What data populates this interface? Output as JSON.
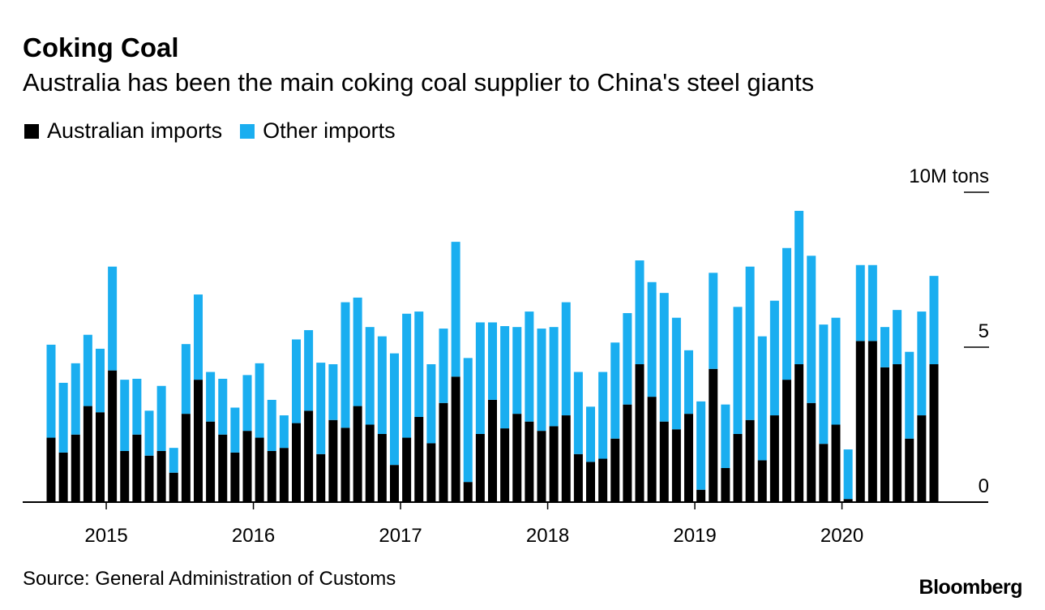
{
  "title": "Coking Coal",
  "subtitle": "Australia has been the main coking coal supplier to China's steel giants",
  "legend": [
    {
      "label": "Australian imports",
      "color": "#000000"
    },
    {
      "label": "Other imports",
      "color": "#1aaef0"
    }
  ],
  "source": "Source: General Administration of Customs",
  "brand": "Bloomberg",
  "chart_data": {
    "type": "bar",
    "stacked": true,
    "title": "Coking Coal",
    "subtitle": "Australia has been the main coking coal supplier to China's steel giants",
    "unit_label": "10M tons",
    "ylim": [
      0,
      10
    ],
    "yticks": [
      {
        "value": 0,
        "label": "0"
      },
      {
        "value": 5,
        "label": "5"
      },
      {
        "value": 10,
        "label": "10M tons"
      }
    ],
    "x_start": "2014-08",
    "xticks": [
      {
        "label": "2015",
        "index": 5
      },
      {
        "label": "2016",
        "index": 17
      },
      {
        "label": "2017",
        "index": 29
      },
      {
        "label": "2018",
        "index": 41
      },
      {
        "label": "2019",
        "index": 53
      },
      {
        "label": "2020",
        "index": 65
      }
    ],
    "series": [
      {
        "name": "Australian imports",
        "color": "#000000",
        "values": [
          2.08,
          1.6,
          2.18,
          3.1,
          2.9,
          4.25,
          1.65,
          2.18,
          1.5,
          1.65,
          0.95,
          2.85,
          3.95,
          2.6,
          2.18,
          1.6,
          2.3,
          2.08,
          1.65,
          1.75,
          2.55,
          2.95,
          1.55,
          2.65,
          2.4,
          3.1,
          2.5,
          2.2,
          1.2,
          2.08,
          2.75,
          1.9,
          3.2,
          4.05,
          0.65,
          2.2,
          3.3,
          2.38,
          2.85,
          2.6,
          2.3,
          2.45,
          2.8,
          1.55,
          1.3,
          1.4,
          2.05,
          3.15,
          4.45,
          3.4,
          2.6,
          2.35,
          2.85,
          0.4,
          4.3,
          1.1,
          2.2,
          2.65,
          1.35,
          2.8,
          3.95,
          4.45,
          3.2,
          1.88,
          2.5,
          0.1,
          5.2,
          5.2,
          4.35,
          4.45,
          2.05,
          2.8,
          4.45
        ]
      },
      {
        "name": "Other imports",
        "color": "#1aaef0",
        "values": [
          3.0,
          2.25,
          2.3,
          2.3,
          2.05,
          3.35,
          2.3,
          1.8,
          1.45,
          2.1,
          0.8,
          2.25,
          2.75,
          1.6,
          1.8,
          1.45,
          1.8,
          2.4,
          1.65,
          1.05,
          2.7,
          2.6,
          2.95,
          1.8,
          4.05,
          3.5,
          3.15,
          3.15,
          3.6,
          4.0,
          3.4,
          2.55,
          2.4,
          4.35,
          4.0,
          3.6,
          2.5,
          3.3,
          2.8,
          3.55,
          3.3,
          3.2,
          3.65,
          2.65,
          1.78,
          2.8,
          3.1,
          2.95,
          3.35,
          3.7,
          4.15,
          3.6,
          2.05,
          2.85,
          3.1,
          2.05,
          4.1,
          4.95,
          4.0,
          3.7,
          4.25,
          4.95,
          4.75,
          3.85,
          3.45,
          1.6,
          2.45,
          2.45,
          1.3,
          1.75,
          2.8,
          3.35,
          2.85
        ]
      }
    ]
  }
}
